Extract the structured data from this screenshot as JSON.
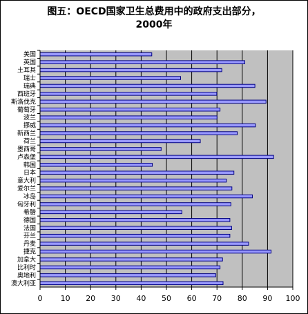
{
  "chart_data": {
    "type": "bar",
    "orientation": "horizontal",
    "title": "图五：OECD国家卫生总费用中的政府支出部分，\n2000年",
    "categories": [
      "美国",
      "英国",
      "土耳其",
      "瑞士",
      "瑞典",
      "西班牙",
      "斯洛伐克",
      "葡萄牙",
      "波兰",
      "挪威",
      "新西兰",
      "荷兰",
      "墨西哥",
      "卢森堡",
      "韩国",
      "日本",
      "意大利",
      "爱尔兰",
      "冰岛",
      "匈牙利",
      "希腊",
      "德国",
      "法国",
      "芬兰",
      "丹麦",
      "捷克",
      "加拿大",
      "比利时",
      "奥地利",
      "澳大利亚"
    ],
    "values": [
      44.2,
      81.0,
      71.9,
      55.6,
      85.0,
      69.9,
      89.4,
      71.2,
      70.0,
      85.2,
      78.0,
      63.4,
      47.9,
      92.4,
      44.4,
      76.7,
      73.7,
      75.9,
      84.0,
      75.5,
      56.1,
      75.1,
      75.8,
      75.1,
      82.5,
      91.4,
      72.2,
      71.2,
      69.5,
      72.4
    ],
    "xlim": [
      0,
      100
    ],
    "xticks": [
      0,
      10,
      20,
      30,
      40,
      50,
      60,
      70,
      80,
      90,
      100
    ],
    "grid": true,
    "colors": {
      "bar_fill": "#9999ff",
      "bar_stroke": "#000080",
      "plot_bg": "#c0c0c0"
    }
  }
}
